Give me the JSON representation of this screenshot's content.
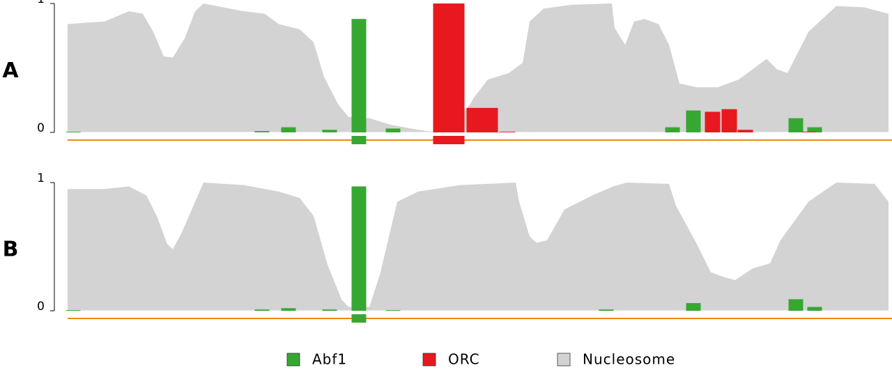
{
  "chart_data": [
    {
      "type": "binding",
      "label": "A",
      "ylim": [
        0,
        1
      ],
      "yticks": [
        0,
        1
      ],
      "xlim": [
        0,
        1178
      ],
      "nucleosome": {
        "name": "Nucleosome",
        "color": "#d3d3d3",
        "x": [
          0,
          23,
          53,
          88,
          108,
          123,
          138,
          151,
          168,
          183,
          195,
          223,
          253,
          283,
          303,
          333,
          353,
          368,
          388,
          403,
          433,
          463,
          493,
          515,
          543,
          578,
          583,
          603,
          633,
          653,
          663,
          683,
          723,
          781,
          785,
          800,
          813,
          828,
          848,
          863,
          878,
          903,
          933,
          963,
          983,
          1003,
          1018,
          1033,
          1063,
          1103,
          1143,
          1178
        ],
        "values": [
          0.84,
          0.85,
          0.86,
          0.94,
          0.92,
          0.78,
          0.59,
          0.58,
          0.73,
          0.94,
          1.0,
          0.97,
          0.94,
          0.92,
          0.84,
          0.8,
          0.7,
          0.43,
          0.22,
          0.12,
          0.11,
          0.06,
          0.03,
          0.01,
          0,
          0.22,
          0.27,
          0.41,
          0.46,
          0.54,
          0.86,
          0.96,
          0.99,
          1.0,
          0.81,
          0.68,
          0.86,
          0.88,
          0.84,
          0.68,
          0.38,
          0.35,
          0.35,
          0.41,
          0.49,
          0.57,
          0.49,
          0.46,
          0.78,
          0.98,
          0.97,
          0.92
        ]
      },
      "series": [
        {
          "name": "Abf1",
          "color": "#36a832",
          "starts": [
            -3,
            268,
            306,
            365,
            407,
            456,
            857,
            887,
            1034,
            1061
          ],
          "ends": [
            19,
            290,
            328,
            387,
            429,
            478,
            879,
            909,
            1056,
            1083
          ],
          "values": [
            0.005,
            0.01,
            0.04,
            0.02,
            0.88,
            0.03,
            0.04,
            0.17,
            0.11,
            0.04
          ]
        },
        {
          "name": "ORC",
          "color": "#e8191e",
          "starts": [
            524,
            572,
            619,
            914,
            938,
            961,
            1053
          ],
          "ends": [
            570,
            618,
            643,
            937,
            961,
            984,
            1075
          ],
          "values": [
            1.0,
            0.19,
            0.005,
            0.16,
            0.18,
            0.02,
            0.005
          ]
        }
      ],
      "sites": [
        {
          "series": 0,
          "start": 407,
          "end": 429
        },
        {
          "series": 1,
          "start": 524,
          "end": 570
        }
      ]
    },
    {
      "type": "binding",
      "label": "B",
      "ylim": [
        0,
        1
      ],
      "yticks": [
        0,
        1
      ],
      "xlim": [
        0,
        1178
      ],
      "nucleosome": {
        "name": "Nucleosome",
        "color": "#d3d3d3",
        "x": [
          0,
          53,
          88,
          113,
          128,
          143,
          151,
          163,
          183,
          195,
          253,
          303,
          333,
          353,
          373,
          393,
          403,
          433,
          448,
          473,
          503,
          563,
          643,
          648,
          663,
          673,
          688,
          713,
          753,
          783,
          803,
          863,
          873,
          903,
          923,
          943,
          958,
          983,
          1008,
          1023,
          1063,
          1103,
          1158,
          1178
        ],
        "values": [
          0.95,
          0.95,
          0.97,
          0.9,
          0.74,
          0.52,
          0.48,
          0.6,
          0.85,
          1.0,
          0.98,
          0.93,
          0.88,
          0.74,
          0.36,
          0.09,
          0.03,
          0.03,
          0.28,
          0.85,
          0.93,
          0.98,
          1.0,
          0.85,
          0.58,
          0.53,
          0.55,
          0.79,
          0.9,
          0.97,
          1.0,
          0.99,
          0.82,
          0.52,
          0.3,
          0.26,
          0.24,
          0.33,
          0.37,
          0.55,
          0.85,
          1.0,
          0.99,
          0.85
        ]
      },
      "series": [
        {
          "name": "Abf1",
          "color": "#36a832",
          "starts": [
            -3,
            268,
            306,
            365,
            407,
            456,
            762,
            887,
            1034,
            1061
          ],
          "ends": [
            19,
            290,
            328,
            387,
            429,
            478,
            784,
            909,
            1056,
            1083
          ],
          "values": [
            0.005,
            0.01,
            0.02,
            0.01,
            0.97,
            0.005,
            0.01,
            0.06,
            0.09,
            0.03
          ]
        }
      ],
      "sites": [
        {
          "series": 0,
          "start": 407,
          "end": 429
        }
      ]
    }
  ]
}
